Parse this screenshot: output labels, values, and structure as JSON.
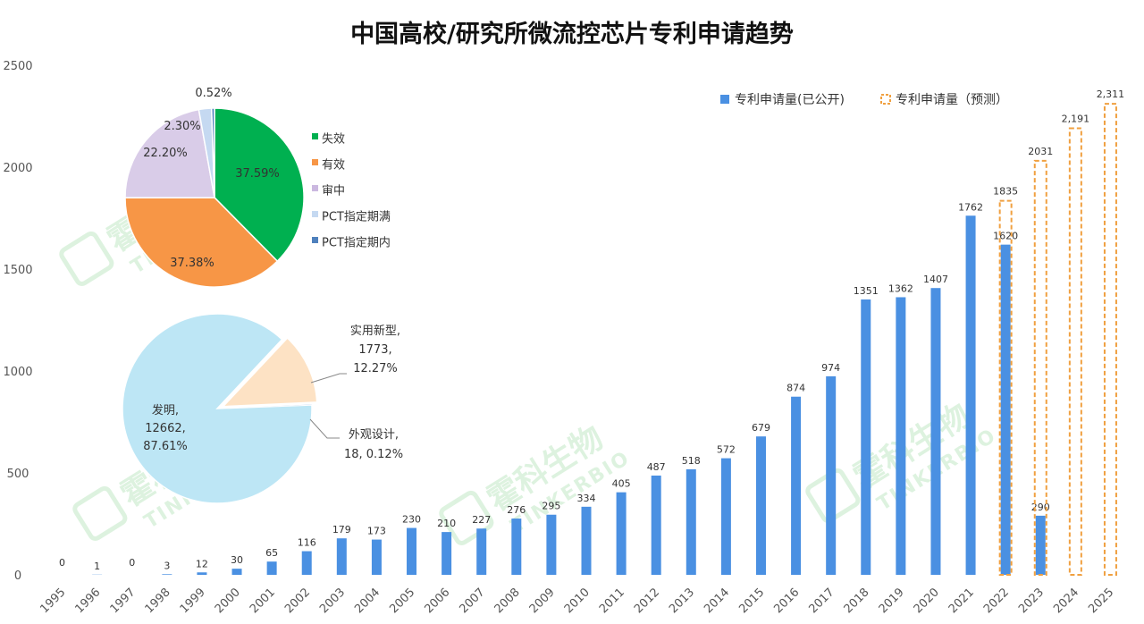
{
  "chart_data": [
    {
      "type": "bar",
      "title": "中国高校/研究所微流控芯片专利申请趋势",
      "categories": [
        "1995",
        "1996",
        "1997",
        "1998",
        "1999",
        "2000",
        "2001",
        "2002",
        "2003",
        "2004",
        "2005",
        "2006",
        "2007",
        "2008",
        "2009",
        "2010",
        "2011",
        "2012",
        "2013",
        "2014",
        "2015",
        "2016",
        "2017",
        "2018",
        "2019",
        "2020",
        "2021",
        "2022",
        "2023",
        "2024",
        "2025"
      ],
      "ylim": [
        0,
        2500
      ],
      "yticks": [
        "0",
        "500",
        "1000",
        "1500",
        "2000",
        "2500"
      ],
      "legend_position": "top-right",
      "series": [
        {
          "name": "专利申请量(已公开)",
          "color": "#4a90e2",
          "style": "solid",
          "values": [
            0,
            1,
            0,
            3,
            12,
            30,
            65,
            116,
            179,
            173,
            230,
            210,
            227,
            276,
            295,
            334,
            405,
            487,
            518,
            572,
            679,
            874,
            974,
            1351,
            1362,
            1407,
            1762,
            1620,
            290,
            null,
            null
          ],
          "labels": [
            "0",
            "1",
            "0",
            "3",
            "12",
            "30",
            "65",
            "116",
            "179",
            "173",
            "230",
            "210",
            "227",
            "276",
            "295",
            "334",
            "405",
            "487",
            "518",
            "572",
            "679",
            "874",
            "974",
            "1351",
            "1362",
            "1407",
            "1762",
            "1620",
            "290",
            "",
            ""
          ]
        },
        {
          "name": "专利申请量（预测）",
          "color": "#f0a040",
          "style": "dashed",
          "values": [
            null,
            null,
            null,
            null,
            null,
            null,
            null,
            null,
            null,
            null,
            null,
            null,
            null,
            null,
            null,
            null,
            null,
            null,
            null,
            null,
            null,
            null,
            null,
            null,
            null,
            null,
            null,
            1835,
            2031,
            2191,
            2311
          ],
          "labels": [
            "",
            "",
            "",
            "",
            "",
            "",
            "",
            "",
            "",
            "",
            "",
            "",
            "",
            "",
            "",
            "",
            "",
            "",
            "",
            "",
            "",
            "",
            "",
            "",
            "",
            "",
            "",
            "1835",
            "2031",
            "2,191",
            "2,311"
          ]
        }
      ]
    },
    {
      "type": "pie",
      "legend_position": "right",
      "slices": [
        {
          "name": "失效",
          "value": 37.59,
          "label": "37.59%",
          "color": "#00b050"
        },
        {
          "name": "有效",
          "value": 37.38,
          "label": "37.38%",
          "color": "#f79646"
        },
        {
          "name": "审中",
          "value": 22.2,
          "label": "22.20%",
          "color": "#d9cce8"
        },
        {
          "name": "PCT指定期满",
          "value": 2.3,
          "label": "2.30%",
          "color": "#c5d9f1"
        },
        {
          "name": "PCT指定期内",
          "value": 0.52,
          "label": "0.52%",
          "color": "#4f81bd"
        }
      ]
    },
    {
      "type": "pie",
      "slices": [
        {
          "name": "发明",
          "value": 12662,
          "percent": "87.61%",
          "label_lines": [
            "发明,",
            "12662,",
            "87.61%"
          ],
          "color": "#bde6f5"
        },
        {
          "name": "实用新型",
          "value": 1773,
          "percent": "12.27%",
          "label_lines": [
            "实用新型,",
            "1773,",
            "12.27%"
          ],
          "color": "#fde2c4"
        },
        {
          "name": "外观设计",
          "value": 18,
          "percent": "0.12%",
          "label_lines": [
            "外观设计,",
            "18, 0.12%"
          ],
          "color": "#c5d9f1"
        }
      ]
    }
  ],
  "watermark": {
    "brand": "霍科生物",
    "brand_en": "TINKERBIO",
    "color": "#3cb84a"
  }
}
